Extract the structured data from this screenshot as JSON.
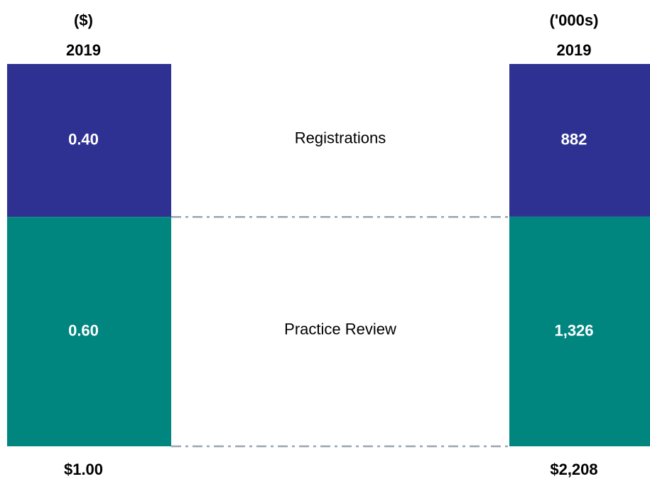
{
  "chart_data": [
    {
      "type": "bar",
      "stacked": true,
      "title": "($)",
      "categories": [
        "2019"
      ],
      "series": [
        {
          "name": "Registrations",
          "color": "#2e3192",
          "values": [
            0.4
          ],
          "value_labels": [
            "0.40"
          ]
        },
        {
          "name": "Practice Review",
          "color": "#00857f",
          "values": [
            0.6
          ],
          "value_labels": [
            "0.60"
          ]
        }
      ],
      "totals": [
        1
      ],
      "total_labels": [
        "$1.00"
      ]
    },
    {
      "type": "bar",
      "stacked": true,
      "title": "('000s)",
      "categories": [
        "2019"
      ],
      "series": [
        {
          "name": "Registrations",
          "color": "#2e3192",
          "values": [
            882
          ],
          "value_labels": [
            "882"
          ]
        },
        {
          "name": "Practice Review",
          "color": "#00857f",
          "values": [
            1326
          ],
          "value_labels": [
            "1,326"
          ]
        }
      ],
      "totals": [
        2208
      ],
      "total_labels": [
        "$2,208"
      ]
    }
  ]
}
